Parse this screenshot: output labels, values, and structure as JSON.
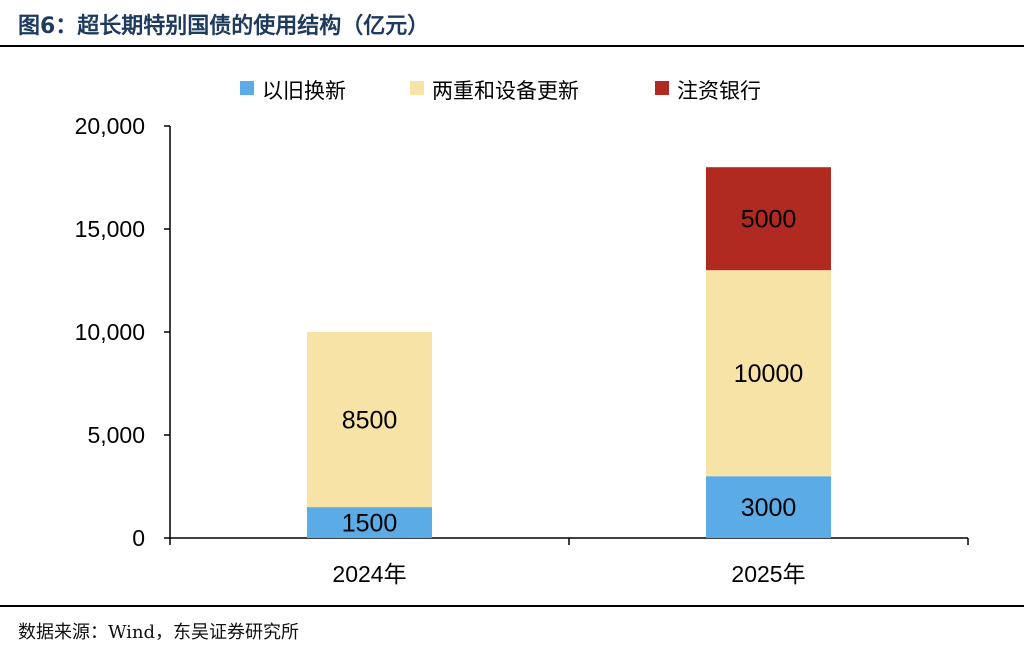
{
  "figure": {
    "title": "图6：超长期特别国债的使用结构（亿元）",
    "source": "数据来源：Wind，东吴证券研究所"
  },
  "chart_data": {
    "type": "bar",
    "stacked": true,
    "categories": [
      "2024年",
      "2025年"
    ],
    "series": [
      {
        "name": "以旧换新",
        "color": "#5aabe6",
        "values": [
          1500,
          3000
        ]
      },
      {
        "name": "两重和设备更新",
        "color": "#f8e3a6",
        "values": [
          8500,
          10000
        ]
      },
      {
        "name": "注资银行",
        "color": "#b02a22",
        "values": [
          null,
          5000
        ]
      }
    ],
    "data_labels": [
      [
        "1500",
        "3000"
      ],
      [
        "8500",
        "10000"
      ],
      [
        null,
        "5000"
      ]
    ],
    "ylim": [
      0,
      20000
    ],
    "yticks": [
      0,
      5000,
      10000,
      15000,
      20000
    ],
    "ytick_labels": [
      "0",
      "5,000",
      "10,000",
      "15,000",
      "20,000"
    ],
    "legend_position": "top",
    "grid": false
  }
}
